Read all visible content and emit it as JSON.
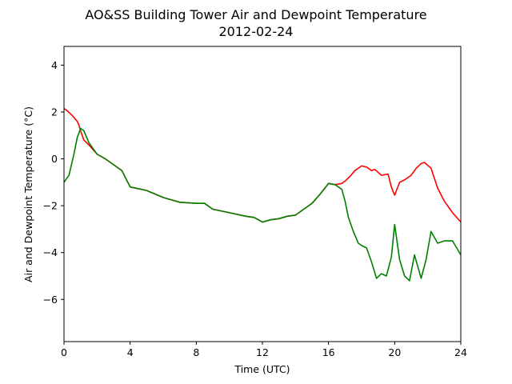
{
  "chart_data": {
    "type": "line",
    "title": "AO&SS Building Tower Air and Dewpoint Temperature",
    "subtitle": "2012-02-24",
    "xlabel": "Time (UTC)",
    "ylabel": "Air and Dewpoint Temperature (°C)",
    "xlim": [
      0,
      24
    ],
    "ylim": [
      -7.8,
      4.8
    ],
    "xticks": [
      0,
      4,
      8,
      12,
      16,
      20,
      24
    ],
    "yticks": [
      -6,
      -4,
      -2,
      0,
      2,
      4
    ],
    "grid": false,
    "series": [
      {
        "color": "#ff0000",
        "x": [
          0,
          0.2,
          0.5,
          0.8,
          0.9,
          1.0,
          1.2,
          1.5,
          2.0,
          2.5,
          3.0,
          3.5,
          4.0,
          5.0,
          6.0,
          7.0,
          8.0,
          8.5,
          9.0,
          10.0,
          11.0,
          11.5,
          12.0,
          12.5,
          13.0,
          13.5,
          14.0,
          14.5,
          15.0,
          15.5,
          16.0,
          16.4,
          16.8,
          17.0,
          17.3,
          17.6,
          18.0,
          18.3,
          18.6,
          18.8,
          19.2,
          19.6,
          19.8,
          20.0,
          20.3,
          20.6,
          21.0,
          21.3,
          21.6,
          21.8,
          22.2,
          22.6,
          23.0,
          23.5,
          24.0
        ],
        "values": [
          2.15,
          2.05,
          1.85,
          1.6,
          1.45,
          1.2,
          0.8,
          0.6,
          0.2,
          0.0,
          -0.25,
          -0.5,
          -1.2,
          -1.35,
          -1.65,
          -1.85,
          -1.9,
          -1.9,
          -2.15,
          -2.3,
          -2.45,
          -2.5,
          -2.7,
          -2.6,
          -2.55,
          -2.45,
          -2.4,
          -2.15,
          -1.9,
          -1.5,
          -1.05,
          -1.1,
          -1.05,
          -0.95,
          -0.75,
          -0.5,
          -0.3,
          -0.35,
          -0.5,
          -0.45,
          -0.7,
          -0.65,
          -1.2,
          -1.55,
          -1.0,
          -0.9,
          -0.7,
          -0.4,
          -0.2,
          -0.15,
          -0.4,
          -1.25,
          -1.8,
          -2.3,
          -2.7
        ]
      },
      {
        "color": "#008000",
        "x": [
          0,
          0.3,
          0.6,
          0.8,
          1.0,
          1.2,
          1.5,
          2.0,
          2.5,
          3.0,
          3.5,
          4.0,
          5.0,
          6.0,
          7.0,
          8.0,
          8.5,
          9.0,
          10.0,
          11.0,
          11.5,
          12.0,
          12.5,
          13.0,
          13.5,
          14.0,
          14.5,
          15.0,
          15.5,
          16.0,
          16.4,
          16.8,
          17.0,
          17.2,
          17.5,
          17.8,
          18.0,
          18.3,
          18.6,
          18.9,
          19.2,
          19.5,
          19.8,
          20.0,
          20.3,
          20.6,
          20.9,
          21.2,
          21.6,
          21.9,
          22.2,
          22.6,
          23.0,
          23.5,
          24.0
        ],
        "values": [
          -1.0,
          -0.7,
          0.2,
          0.9,
          1.3,
          1.2,
          0.7,
          0.2,
          0.0,
          -0.25,
          -0.5,
          -1.2,
          -1.35,
          -1.65,
          -1.85,
          -1.9,
          -1.9,
          -2.15,
          -2.3,
          -2.45,
          -2.5,
          -2.7,
          -2.6,
          -2.55,
          -2.45,
          -2.4,
          -2.15,
          -1.9,
          -1.5,
          -1.05,
          -1.1,
          -1.3,
          -1.8,
          -2.5,
          -3.1,
          -3.6,
          -3.7,
          -3.8,
          -4.4,
          -5.1,
          -4.9,
          -5.0,
          -4.2,
          -2.8,
          -4.3,
          -5.0,
          -5.2,
          -4.1,
          -5.1,
          -4.3,
          -3.1,
          -3.6,
          -3.5,
          -3.5,
          -4.1
        ]
      }
    ]
  }
}
